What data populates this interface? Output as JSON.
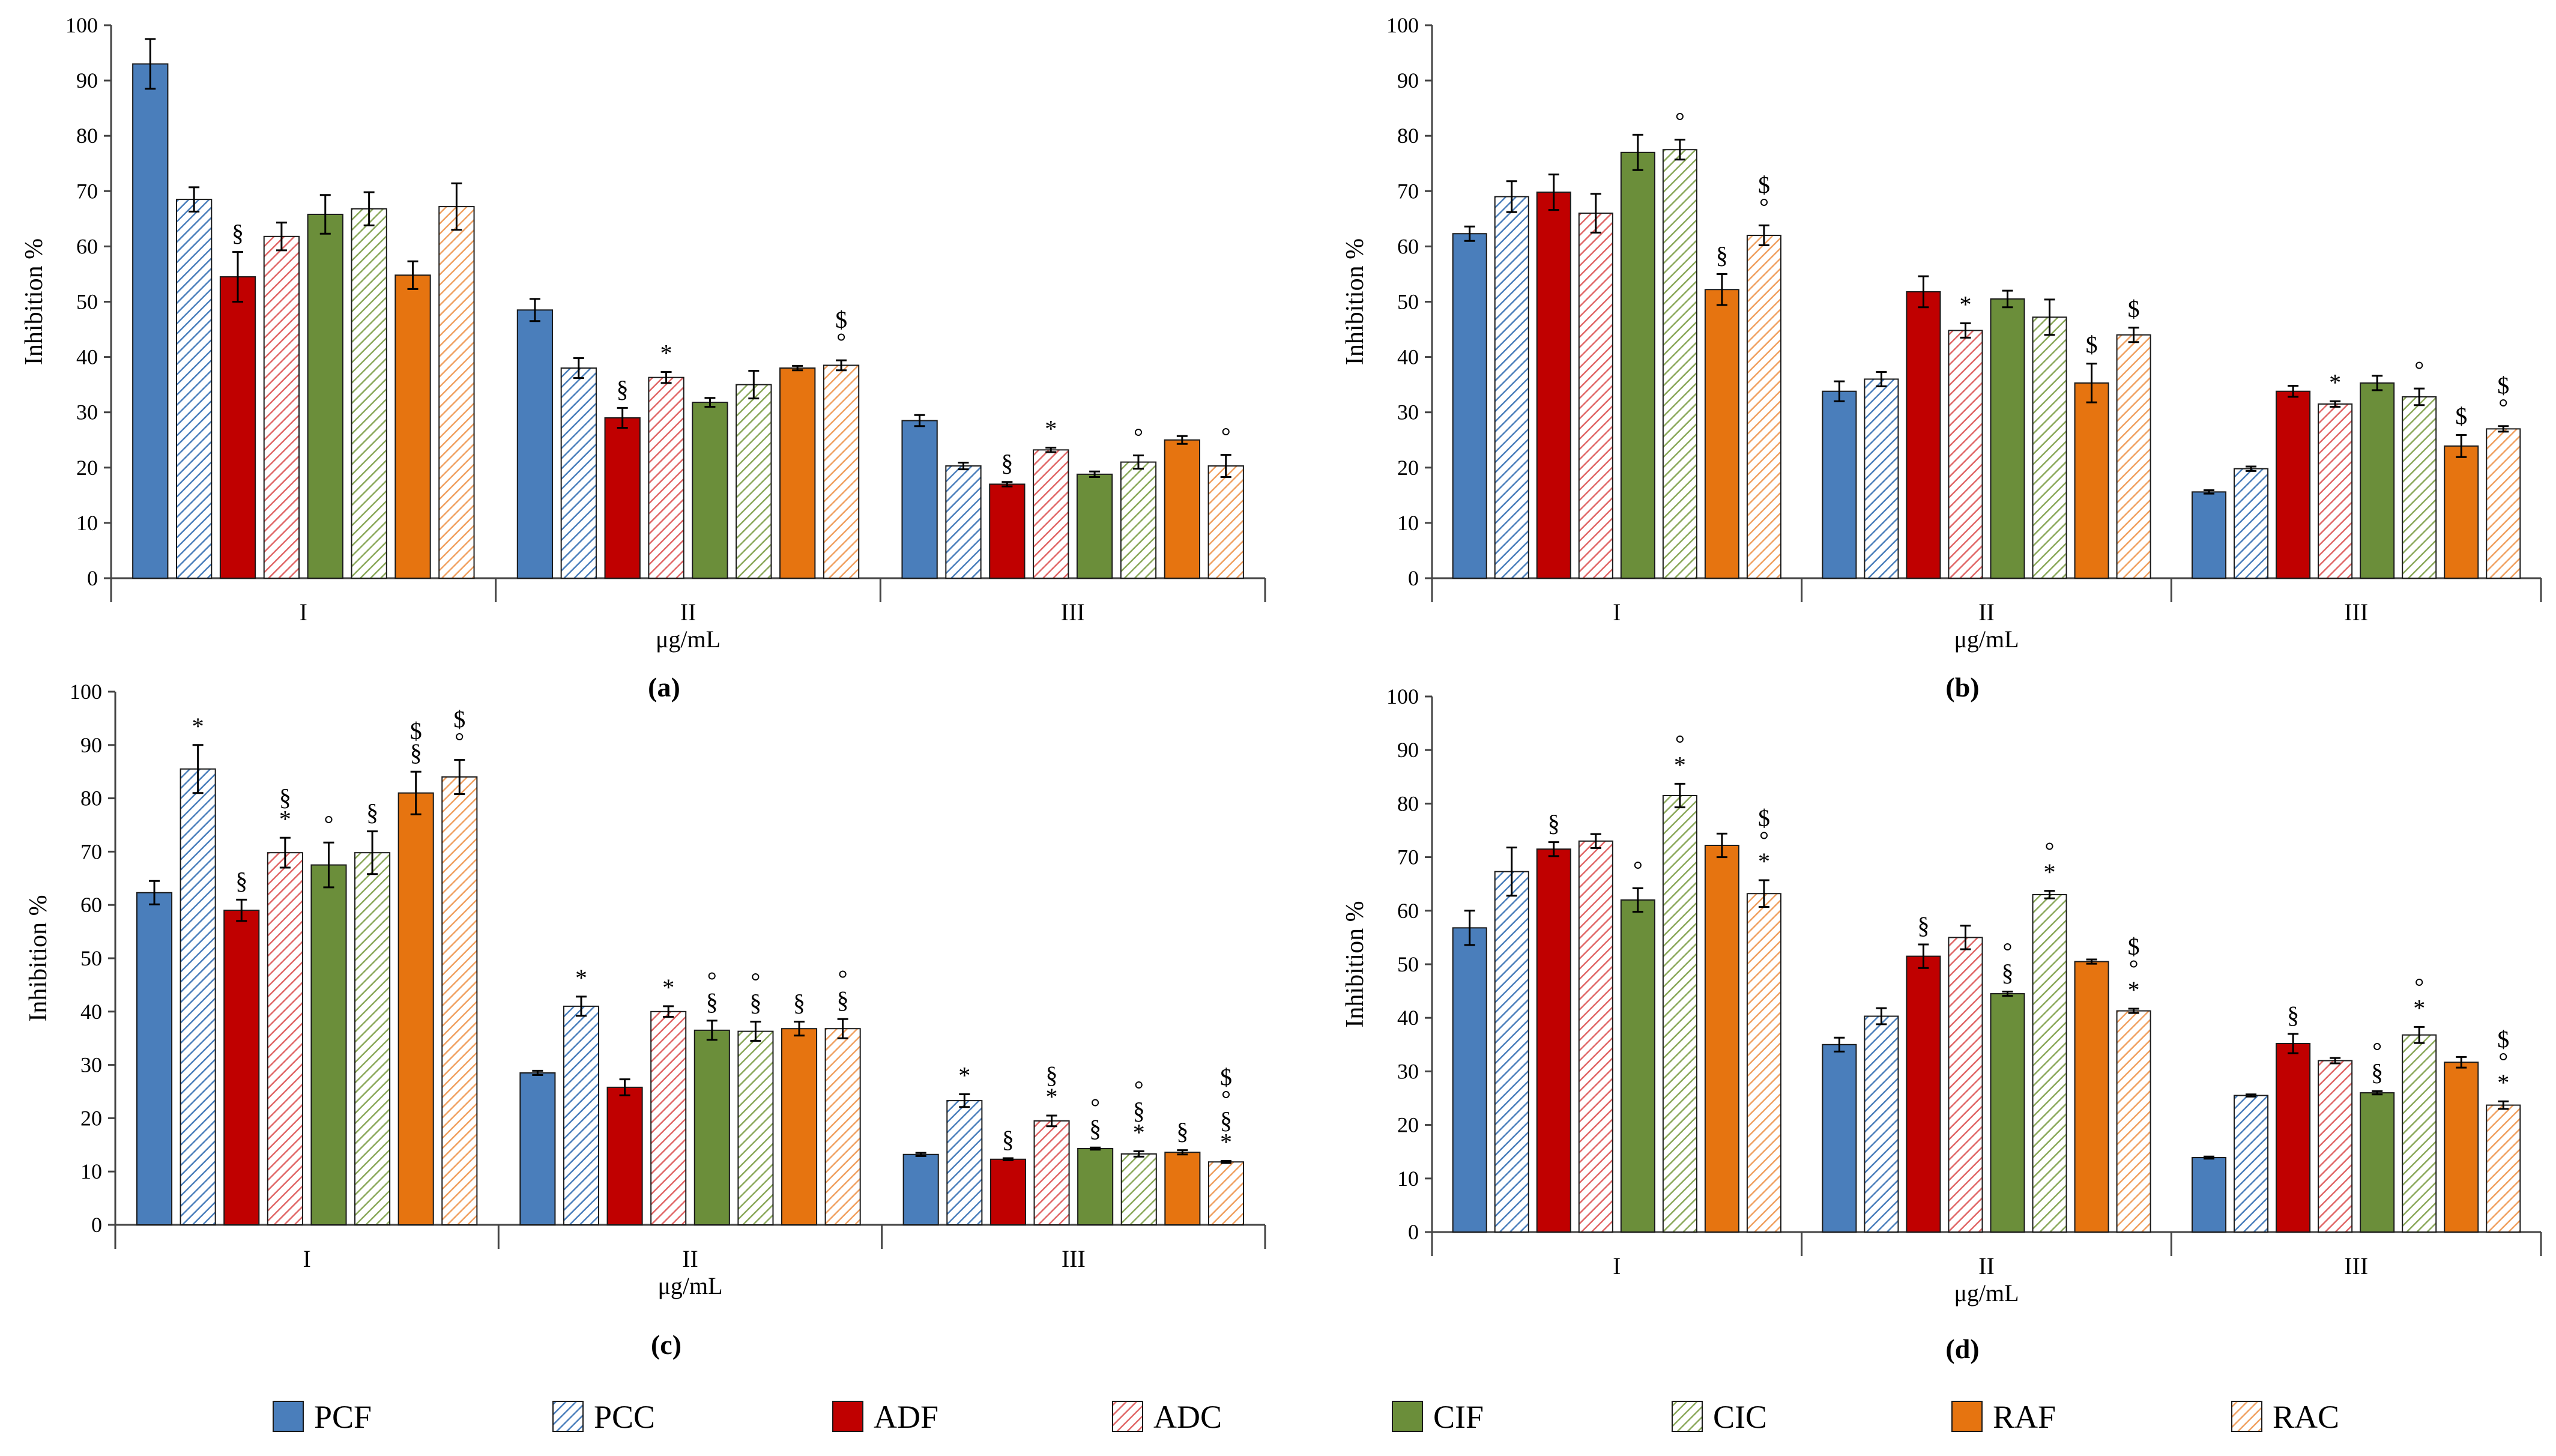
{
  "colors": {
    "PCF": "#4a7ebb",
    "PCC": "#4a7ebb",
    "ADF": "#c00000",
    "ADC": "#e06666",
    "CIF": "#6b8e3a",
    "CIC": "#8aa85a",
    "RAF": "#e67410",
    "RAC": "#f0a060"
  },
  "legend": [
    {
      "label": "PCF",
      "pattern": "solid"
    },
    {
      "label": "PCC",
      "pattern": "hatch"
    },
    {
      "label": "ADF",
      "pattern": "solid"
    },
    {
      "label": "ADC",
      "pattern": "hatch"
    },
    {
      "label": "CIF",
      "pattern": "solid"
    },
    {
      "label": "CIC",
      "pattern": "hatch"
    },
    {
      "label": "RAF",
      "pattern": "solid"
    },
    {
      "label": "RAC",
      "pattern": "hatch"
    }
  ],
  "chart_data": [
    {
      "type": "bar",
      "panel_label": "(a)",
      "ylabel": "Inhibition %",
      "xlabel": "μg/mL",
      "ylim": [
        0,
        100
      ],
      "yticks": [
        "0",
        "10",
        "20",
        "30",
        "40",
        "50",
        "60",
        "70",
        "80",
        "90",
        "100"
      ],
      "categories": [
        "I",
        "II",
        "III"
      ],
      "series": [
        {
          "name": "PCF",
          "values": [
            93,
            48.5,
            28.5
          ],
          "errors": [
            4.5,
            2,
            1
          ],
          "marks": [
            "",
            "",
            ""
          ]
        },
        {
          "name": "PCC",
          "values": [
            68.5,
            38,
            20.3
          ],
          "errors": [
            2.2,
            1.8,
            0.6
          ],
          "marks": [
            "",
            "",
            ""
          ]
        },
        {
          "name": "ADF",
          "values": [
            54.5,
            29,
            17
          ],
          "errors": [
            4.5,
            1.8,
            0.4
          ],
          "marks": [
            "§",
            "§",
            "§"
          ]
        },
        {
          "name": "ADC",
          "values": [
            61.8,
            36.3,
            23.2
          ],
          "errors": [
            2.5,
            1,
            0.4
          ],
          "marks": [
            "",
            "*",
            "*"
          ]
        },
        {
          "name": "CIF",
          "values": [
            65.8,
            31.8,
            18.8
          ],
          "errors": [
            3.5,
            0.8,
            0.5
          ],
          "marks": [
            "",
            "",
            ""
          ]
        },
        {
          "name": "CIC",
          "values": [
            66.8,
            35,
            21
          ],
          "errors": [
            3,
            2.5,
            1.2
          ],
          "marks": [
            "",
            "",
            "°"
          ]
        },
        {
          "name": "RAF",
          "values": [
            54.8,
            38,
            25
          ],
          "errors": [
            2.5,
            0.4,
            0.7
          ],
          "marks": [
            "",
            "",
            ""
          ]
        },
        {
          "name": "RAC",
          "values": [
            67.2,
            38.5,
            20.3
          ],
          "errors": [
            4.2,
            0.9,
            2
          ],
          "marks": [
            "",
            "°,$",
            "°"
          ]
        }
      ]
    },
    {
      "type": "bar",
      "panel_label": "(b)",
      "ylabel": "Inhibition %",
      "xlabel": "μg/mL",
      "ylim": [
        0,
        100
      ],
      "yticks": [
        "0",
        "10",
        "20",
        "30",
        "40",
        "50",
        "60",
        "70",
        "80",
        "90",
        "100"
      ],
      "categories": [
        "I",
        "II",
        "III"
      ],
      "series": [
        {
          "name": "PCF",
          "values": [
            62.3,
            33.8,
            15.6
          ],
          "errors": [
            1.3,
            1.8,
            0.3
          ],
          "marks": [
            "",
            "",
            ""
          ]
        },
        {
          "name": "PCC",
          "values": [
            69,
            36,
            19.8
          ],
          "errors": [
            2.8,
            1.3,
            0.4
          ],
          "marks": [
            "",
            "",
            ""
          ]
        },
        {
          "name": "ADF",
          "values": [
            69.8,
            51.8,
            33.8
          ],
          "errors": [
            3.2,
            2.8,
            1
          ],
          "marks": [
            "",
            "",
            ""
          ]
        },
        {
          "name": "ADC",
          "values": [
            66,
            44.8,
            31.5
          ],
          "errors": [
            3.5,
            1.3,
            0.5
          ],
          "marks": [
            "",
            "*",
            "*"
          ]
        },
        {
          "name": "CIF",
          "values": [
            77,
            50.5,
            35.3
          ],
          "errors": [
            3.2,
            1.5,
            1.3
          ],
          "marks": [
            "",
            "",
            ""
          ]
        },
        {
          "name": "CIC",
          "values": [
            77.5,
            47.2,
            32.8
          ],
          "errors": [
            1.8,
            3.2,
            1.5
          ],
          "marks": [
            "°",
            "",
            "°"
          ]
        },
        {
          "name": "RAF",
          "values": [
            52.2,
            35.3,
            23.9
          ],
          "errors": [
            2.8,
            3.5,
            2
          ],
          "marks": [
            "§",
            "$",
            "$"
          ]
        },
        {
          "name": "RAC",
          "values": [
            62,
            44,
            27
          ],
          "errors": [
            1.8,
            1.3,
            0.5
          ],
          "marks": [
            "°,$",
            "$",
            "°,$"
          ]
        }
      ]
    },
    {
      "type": "bar",
      "panel_label": "(c)",
      "ylabel": "Inhibition %",
      "xlabel": "μg/mL",
      "ylim": [
        0,
        100
      ],
      "yticks": [
        "0",
        "10",
        "20",
        "30",
        "40",
        "50",
        "60",
        "70",
        "80",
        "90",
        "100"
      ],
      "categories": [
        "I",
        "II",
        "III"
      ],
      "series": [
        {
          "name": "PCF",
          "values": [
            62.3,
            28.5,
            13.2
          ],
          "errors": [
            2.2,
            0.4,
            0.3
          ],
          "marks": [
            "",
            "",
            ""
          ]
        },
        {
          "name": "PCC",
          "values": [
            85.5,
            41,
            23.3
          ],
          "errors": [
            4.5,
            1.8,
            1.2
          ],
          "marks": [
            "*",
            "*",
            "*"
          ]
        },
        {
          "name": "ADF",
          "values": [
            59,
            25.8,
            12.3
          ],
          "errors": [
            2,
            1.5,
            0.2
          ],
          "marks": [
            "§",
            "",
            "§"
          ]
        },
        {
          "name": "ADC",
          "values": [
            69.8,
            40,
            19.5
          ],
          "errors": [
            2.8,
            1,
            1
          ],
          "marks": [
            "*,§",
            "*",
            "*,§"
          ]
        },
        {
          "name": "CIF",
          "values": [
            67.5,
            36.5,
            14.3
          ],
          "errors": [
            4.2,
            1.8,
            0.2
          ],
          "marks": [
            "°",
            "§,°",
            "§,°"
          ]
        },
        {
          "name": "CIC",
          "values": [
            69.8,
            36.3,
            13.3
          ],
          "errors": [
            4,
            1.8,
            0.5
          ],
          "marks": [
            "§",
            "§,°",
            "*,§,°"
          ]
        },
        {
          "name": "RAF",
          "values": [
            81,
            36.8,
            13.6
          ],
          "errors": [
            4,
            1.3,
            0.4
          ],
          "marks": [
            "§,$",
            "§",
            "§"
          ]
        },
        {
          "name": "RAC",
          "values": [
            84,
            36.8,
            11.8
          ],
          "errors": [
            3.2,
            1.8,
            0.2
          ],
          "marks": [
            "°,$",
            "§,°",
            "*,§,°,$"
          ]
        }
      ]
    },
    {
      "type": "bar",
      "panel_label": "(d)",
      "ylabel": "Inhibition %",
      "xlabel": "μg/mL",
      "ylim": [
        0,
        100
      ],
      "yticks": [
        "0",
        "10",
        "20",
        "30",
        "40",
        "50",
        "60",
        "70",
        "80",
        "90",
        "100"
      ],
      "categories": [
        "I",
        "II",
        "III"
      ],
      "series": [
        {
          "name": "PCF",
          "values": [
            56.8,
            35,
            13.9
          ],
          "errors": [
            3.2,
            1.3,
            0.2
          ],
          "marks": [
            "",
            "",
            ""
          ]
        },
        {
          "name": "PCC",
          "values": [
            67.3,
            40.3,
            25.5
          ],
          "errors": [
            4.5,
            1.5,
            0.2
          ],
          "marks": [
            "",
            "",
            ""
          ]
        },
        {
          "name": "ADF",
          "values": [
            71.5,
            51.5,
            35.2
          ],
          "errors": [
            1.3,
            2.2,
            1.8
          ],
          "marks": [
            "§",
            "§",
            "§"
          ]
        },
        {
          "name": "ADC",
          "values": [
            73,
            55,
            32
          ],
          "errors": [
            1.3,
            2.2,
            0.5
          ],
          "marks": [
            "",
            "",
            ""
          ]
        },
        {
          "name": "CIF",
          "values": [
            62,
            44.5,
            26
          ],
          "errors": [
            2.2,
            0.4,
            0.3
          ],
          "marks": [
            "°",
            "§,°",
            "§,°"
          ]
        },
        {
          "name": "CIC",
          "values": [
            81.5,
            63,
            36.8
          ],
          "errors": [
            2.2,
            0.7,
            1.5
          ],
          "marks": [
            "*,°",
            "*,°",
            "*,°"
          ]
        },
        {
          "name": "RAF",
          "values": [
            72.2,
            50.5,
            31.7
          ],
          "errors": [
            2.2,
            0.4,
            1
          ],
          "marks": [
            "",
            "",
            ""
          ]
        },
        {
          "name": "RAC",
          "values": [
            63.2,
            41.3,
            23.7
          ],
          "errors": [
            2.5,
            0.4,
            0.7
          ],
          "marks": [
            "*,°,$",
            "*,°,$",
            "*,°,$"
          ]
        }
      ]
    }
  ]
}
